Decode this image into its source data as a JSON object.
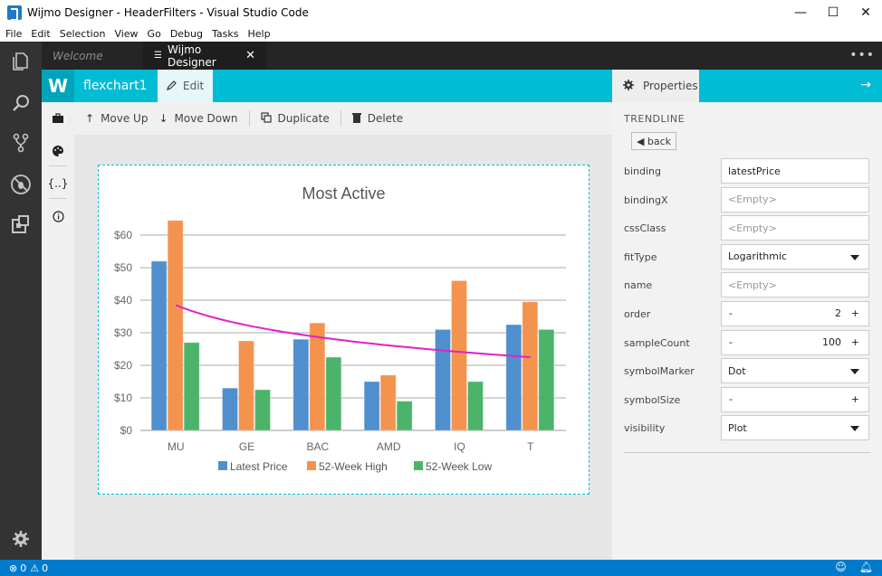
{
  "window": {
    "title": "Wijmo Designer - HeaderFilters - Visual Studio Code",
    "minimize": "—",
    "maximize": "☐",
    "close": "✕"
  },
  "menu": [
    "File",
    "Edit",
    "Selection",
    "View",
    "Go",
    "Debug",
    "Tasks",
    "Help"
  ],
  "activity_icons": [
    "explorer-icon",
    "search-icon",
    "source-control-icon",
    "debug-icon",
    "extensions-icon",
    "settings-icon"
  ],
  "tabs": [
    {
      "label": "Welcome",
      "active": false
    },
    {
      "label": "Wijmo Designer",
      "active": true,
      "close": "✕"
    }
  ],
  "more": "•••",
  "designer": {
    "logo": "W",
    "control_name": "flexchart1",
    "edit_label": "Edit",
    "toolbar": {
      "move_up": "Move Up",
      "move_down": "Move Down",
      "duplicate": "Duplicate",
      "delete": "Delete"
    },
    "side_tools": [
      "briefcase-icon",
      "palette-icon",
      "braces-icon",
      "info-icon"
    ]
  },
  "properties": {
    "tab_label": "Properties",
    "arrow": "→",
    "section": "TRENDLINE",
    "back": "◀ back",
    "rows": [
      {
        "label": "binding",
        "value": "latestPrice",
        "kind": "text"
      },
      {
        "label": "bindingX",
        "value": "<Empty>",
        "kind": "empty"
      },
      {
        "label": "cssClass",
        "value": "<Empty>",
        "kind": "empty"
      },
      {
        "label": "fitType",
        "value": "Logarithmic",
        "kind": "select"
      },
      {
        "label": "name",
        "value": "<Empty>",
        "kind": "empty"
      },
      {
        "label": "order",
        "value": "2",
        "kind": "stepper"
      },
      {
        "label": "sampleCount",
        "value": "100",
        "kind": "stepper"
      },
      {
        "label": "symbolMarker",
        "value": "Dot",
        "kind": "select"
      },
      {
        "label": "symbolSize",
        "value": "",
        "kind": "stepper"
      },
      {
        "label": "visibility",
        "value": "Plot",
        "kind": "select"
      }
    ],
    "minus": "-",
    "plus": "+"
  },
  "status": {
    "errors": "0",
    "warnings": "0"
  },
  "chart_data": {
    "type": "bar",
    "title": "Most Active",
    "categories": [
      "MU",
      "GE",
      "BAC",
      "AMD",
      "IQ",
      "T"
    ],
    "series": [
      {
        "name": "Latest Price",
        "color": "#4f8fce",
        "values": [
          52,
          13,
          28,
          15,
          31,
          32.5
        ]
      },
      {
        "name": "52-Week High",
        "color": "#f4934e",
        "values": [
          64.5,
          27.5,
          33,
          17,
          46,
          39.5
        ]
      },
      {
        "name": "52-Week Low",
        "color": "#4cb46a",
        "values": [
          27,
          12.5,
          22.5,
          9,
          15,
          31
        ]
      }
    ],
    "trendline": {
      "color": "#e021c8",
      "type": "logarithmic",
      "x_range": [
        "MU",
        "T"
      ],
      "start": 38.5,
      "end": 22.5
    },
    "yticks": [
      "$0",
      "$10",
      "$20",
      "$30",
      "$40",
      "$50",
      "$60"
    ],
    "ylim": [
      0,
      65
    ],
    "grid": true,
    "legend": "bottom"
  }
}
